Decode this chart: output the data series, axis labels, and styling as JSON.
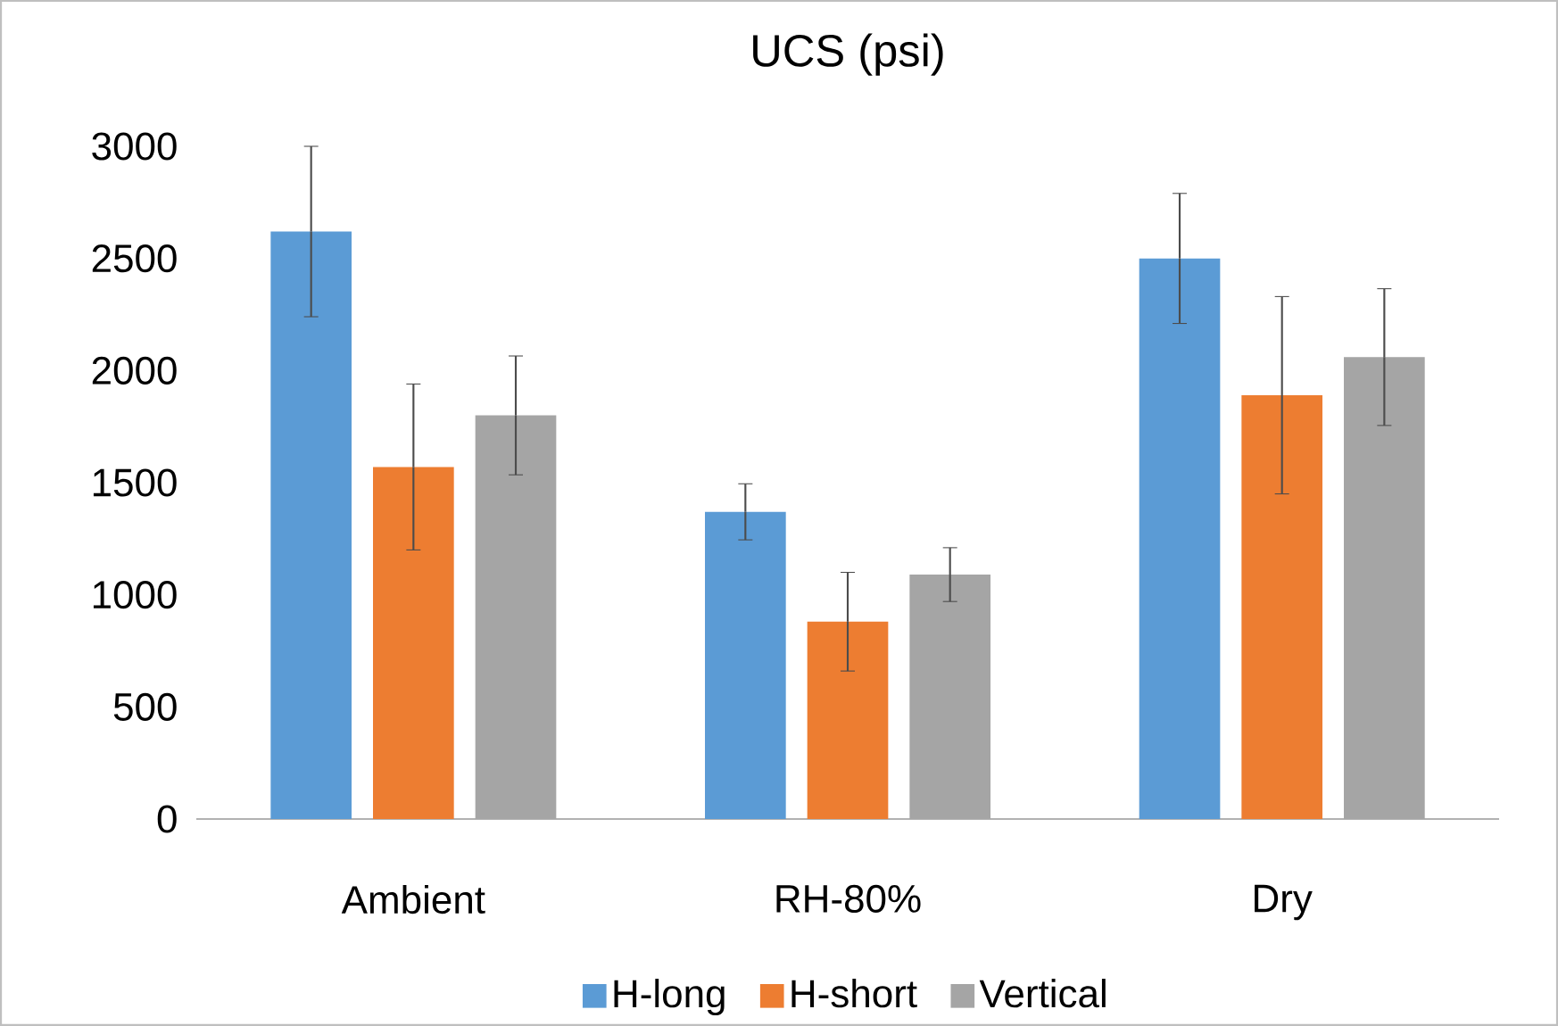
{
  "chart_data": {
    "type": "bar",
    "title": "UCS (psi)",
    "categories": [
      "Ambient",
      "RH-80%",
      "Dry"
    ],
    "series": [
      {
        "name": "H-long",
        "color": "#5b9bd5",
        "values": [
          2620,
          1370,
          2500
        ],
        "errors": [
          380,
          125,
          290
        ]
      },
      {
        "name": "H-short",
        "color": "#ed7d31",
        "values": [
          1570,
          880,
          1890
        ],
        "errors": [
          370,
          220,
          440
        ]
      },
      {
        "name": "Vertical",
        "color": "#a5a5a5",
        "values": [
          1800,
          1090,
          2060
        ],
        "errors": [
          265,
          120,
          305
        ]
      }
    ],
    "ylim": [
      0,
      3000
    ],
    "yticks": [
      0,
      500,
      1000,
      1500,
      2000,
      2500,
      3000
    ],
    "grid": false,
    "legend": "bottom"
  }
}
